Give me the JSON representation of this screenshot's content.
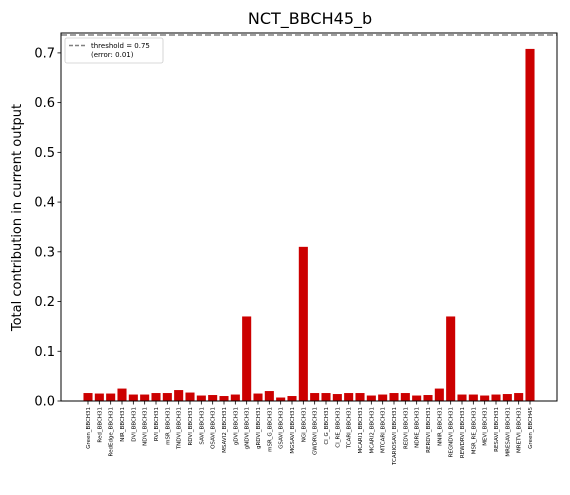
{
  "chart_data": {
    "type": "bar",
    "title": "NCT_BBCH45_b",
    "xlabel": "",
    "ylabel": "Total contribution in current output",
    "ylim": [
      0,
      0.74
    ],
    "yticks": [
      "0.0",
      "0.1",
      "0.2",
      "0.3",
      "0.4",
      "0.5",
      "0.6",
      "0.7"
    ],
    "bar_color": "#cc0000",
    "threshold_color": "#808080",
    "legend": {
      "line1": "threshold = 0.75",
      "line2": "(error: 0.01)",
      "placement": "top-left"
    },
    "threshold": 0.75,
    "categories": [
      "Green_BBCH31",
      "Red_BBCH31",
      "RedEdge_BBCH31",
      "NIR_BBCH31",
      "DVI_BBCH31",
      "NDVI_BBCH31",
      "RVI_BBCH31",
      "mSR_BBCH31",
      "TNDVI_BBCH31",
      "RDVI_BBCH31",
      "SAVI_BBCH31",
      "OSAVI_BBCH31",
      "MSAVI2_BBCH31",
      "gDVI_BBCH31",
      "gNDVI_BBCH31",
      "gRDVI_BBCH31",
      "mSR_G_BBCH31",
      "GSAVI_BBCH31",
      "MGSAVI_BBCH31",
      "NGI_BBCH31",
      "GWDRVI_BBCH31",
      "CI_G_BBCH31",
      "CI_RE_BBCH31",
      "TCARI_BBCH31",
      "MCARI1_BBCH31",
      "MCARI2_BBCH31",
      "MTCARI_BBCH31",
      "TCARIOSAVI_BBCH31",
      "REDVI_BBCH31",
      "NDRE_BBCH31",
      "RERDVI_BBCH31",
      "NNIR_BBCH31",
      "REGNDVI_BBCH31",
      "REWDRVI_BBCH31",
      "MSR_RE_BBCH31",
      "MEVI_BBCH31",
      "RESAVI_BBCH31",
      "MRESAVI_BBCH31",
      "MRETVI_BBCH31",
      "Green_BBCH45"
    ],
    "values": [
      0.016,
      0.015,
      0.015,
      0.025,
      0.013,
      0.013,
      0.016,
      0.016,
      0.022,
      0.017,
      0.011,
      0.012,
      0.01,
      0.013,
      0.17,
      0.015,
      0.02,
      0.007,
      0.01,
      0.31,
      0.016,
      0.016,
      0.014,
      0.016,
      0.016,
      0.011,
      0.013,
      0.016,
      0.016,
      0.011,
      0.012,
      0.025,
      0.17,
      0.013,
      0.013,
      0.011,
      0.013,
      0.014,
      0.016,
      0.708
    ]
  }
}
